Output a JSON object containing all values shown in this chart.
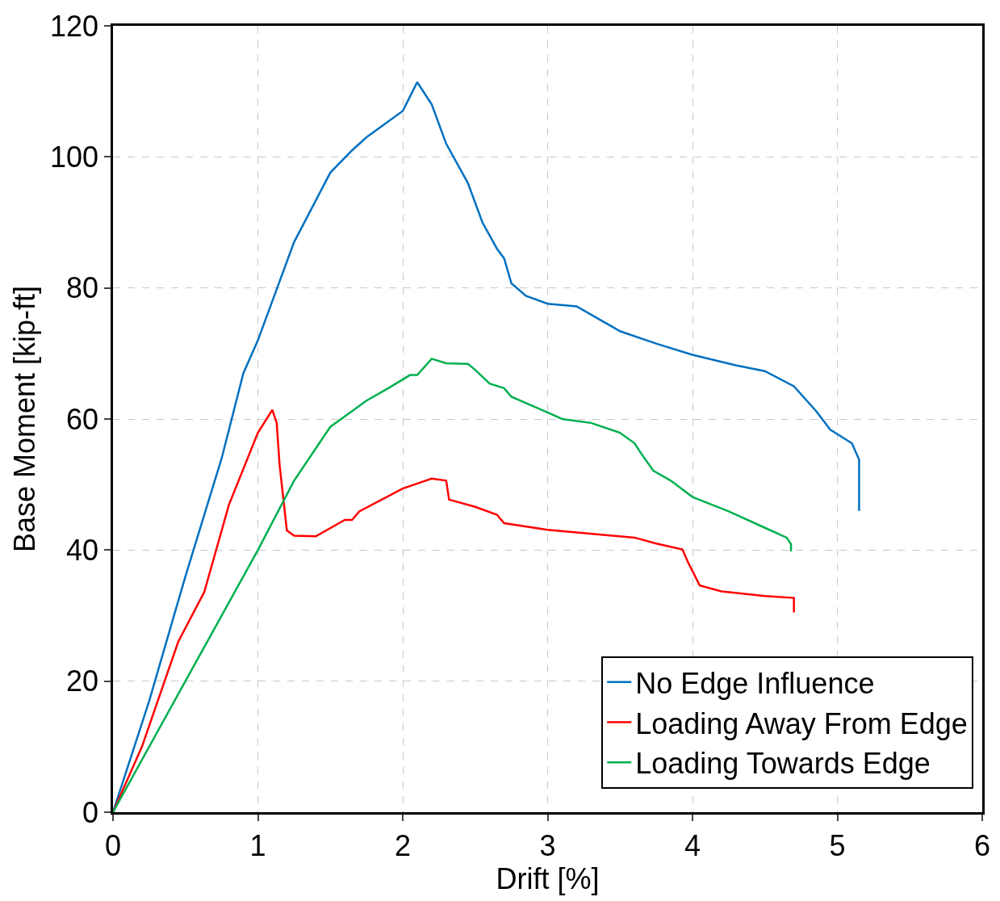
{
  "chart_data": {
    "type": "line",
    "xlabel": "Drift [%]",
    "ylabel": "Base Moment [kip-ft]",
    "xlim": [
      0,
      6
    ],
    "xticks": [
      0,
      1,
      2,
      3,
      4,
      5,
      6
    ],
    "ylim": [
      0,
      120
    ],
    "yticks": [
      0,
      20,
      40,
      60,
      80,
      100,
      120
    ],
    "grid": true,
    "legend": "bottom right",
    "marker": "none",
    "line_style": "solid",
    "series": [
      {
        "name": "No Edge Influence",
        "color": "#0070c0",
        "x": [
          0,
          0.25,
          0.5,
          0.75,
          0.9,
          1.0,
          1.25,
          1.5,
          1.65,
          1.75,
          2.0,
          2.1,
          2.2,
          2.3,
          2.45,
          2.55,
          2.65,
          2.7,
          2.75,
          2.85,
          3.0,
          3.2,
          3.35,
          3.5,
          3.75,
          4.0,
          4.3,
          4.5,
          4.7,
          4.85,
          4.95,
          5.1,
          5.15,
          5.15
        ],
        "values": [
          0,
          17,
          36,
          54,
          67,
          72,
          87,
          97.6,
          101,
          103,
          107,
          111.4,
          108,
          102,
          96,
          90,
          86,
          84.5,
          80.7,
          78.8,
          77.6,
          77.2,
          75.3,
          73.4,
          71.5,
          69.8,
          68.2,
          67.3,
          65,
          61.3,
          58.4,
          56.3,
          53.8,
          46
        ]
      },
      {
        "name": "Loading Away From Edge",
        "color": "#ff0000",
        "x": [
          0,
          0.2,
          0.45,
          0.63,
          0.8,
          1.0,
          1.1,
          1.13,
          1.15,
          1.2,
          1.25,
          1.4,
          1.6,
          1.65,
          1.7,
          2.0,
          2.2,
          2.3,
          2.32,
          2.5,
          2.65,
          2.7,
          3.0,
          3.2,
          3.6,
          3.75,
          3.93,
          3.97,
          4.05,
          4.2,
          4.5,
          4.7,
          4.7
        ],
        "values": [
          0,
          10,
          26,
          33.6,
          46.9,
          57.9,
          61.4,
          59.4,
          53,
          43,
          42.2,
          42.1,
          44.6,
          44.6,
          45.9,
          49.4,
          50.9,
          50.6,
          47.7,
          46.6,
          45.4,
          44.1,
          43.1,
          42.7,
          41.9,
          41,
          40.1,
          38.1,
          34.6,
          33.7,
          33,
          32.7,
          30.5
        ]
      },
      {
        "name": "Loading Towards Edge",
        "color": "#00b050",
        "x": [
          0,
          0.5,
          1.0,
          1.25,
          1.5,
          1.75,
          1.9,
          2.05,
          2.1,
          2.2,
          2.3,
          2.45,
          2.5,
          2.6,
          2.7,
          2.75,
          3.0,
          3.1,
          3.3,
          3.5,
          3.6,
          3.65,
          3.73,
          3.85,
          4.0,
          4.25,
          4.5,
          4.65,
          4.68,
          4.68
        ],
        "values": [
          0,
          20,
          40,
          50.6,
          58.8,
          62.8,
          64.7,
          66.7,
          66.7,
          69.2,
          68.5,
          68.4,
          67.5,
          65.4,
          64.7,
          63.4,
          61,
          60,
          59.4,
          57.9,
          56.3,
          54.6,
          52.1,
          50.6,
          48.1,
          45.9,
          43.4,
          41.9,
          40.9,
          39.8
        ]
      }
    ]
  }
}
